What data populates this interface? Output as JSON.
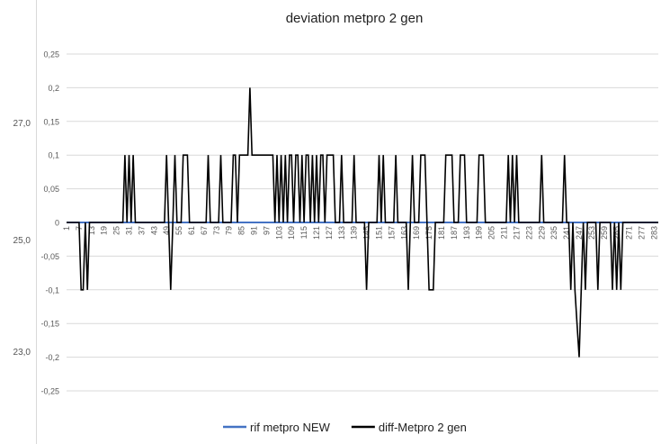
{
  "left_strip": {
    "ticks": [
      "27,0",
      "25,0",
      "23,0"
    ]
  },
  "chart_data": {
    "type": "line",
    "title": "deviation metpro 2 gen",
    "xlabel": "",
    "ylabel": "",
    "ylim": [
      -0.25,
      0.25
    ],
    "yticks": [
      "0,25",
      "0,2",
      "0,15",
      "0,1",
      "0,05",
      "0",
      "-0,05",
      "-0,1",
      "-0,15",
      "-0,2",
      "-0,25"
    ],
    "x_range": [
      1,
      285
    ],
    "xtick_labels": [
      "1",
      "7",
      "13",
      "19",
      "25",
      "31",
      "37",
      "43",
      "49",
      "55",
      "61",
      "67",
      "73",
      "79",
      "85",
      "91",
      "97",
      "103",
      "109",
      "115",
      "121",
      "127",
      "133",
      "139",
      "145",
      "151",
      "157",
      "163",
      "169",
      "175",
      "181",
      "187",
      "193",
      "199",
      "205",
      "211",
      "217",
      "223",
      "229",
      "235",
      "241",
      "247",
      "253",
      "259",
      "265",
      "271",
      "277",
      "283"
    ],
    "grid": true,
    "legend_position": "bottom",
    "series": [
      {
        "name": "rif metpro NEW",
        "color": "#4472c4",
        "points": [
          [
            1,
            0
          ],
          [
            285,
            0
          ]
        ]
      },
      {
        "name": "diff-Metpro 2 gen",
        "color": "#000000",
        "points": [
          [
            1,
            0
          ],
          [
            7,
            0
          ],
          [
            8,
            -0.1
          ],
          [
            9,
            -0.1
          ],
          [
            10,
            0
          ],
          [
            11,
            -0.1
          ],
          [
            12,
            0
          ],
          [
            28,
            0
          ],
          [
            29,
            0.1
          ],
          [
            30,
            0
          ],
          [
            31,
            0.1
          ],
          [
            32,
            0
          ],
          [
            33,
            0.1
          ],
          [
            34,
            0
          ],
          [
            48,
            0
          ],
          [
            49,
            0.1
          ],
          [
            50,
            0
          ],
          [
            51,
            -0.1
          ],
          [
            52,
            0
          ],
          [
            53,
            0.1
          ],
          [
            54,
            0
          ],
          [
            56,
            0
          ],
          [
            57,
            0.1
          ],
          [
            59,
            0.1
          ],
          [
            60,
            0
          ],
          [
            68,
            0
          ],
          [
            69,
            0.1
          ],
          [
            70,
            0
          ],
          [
            74,
            0
          ],
          [
            75,
            0.1
          ],
          [
            76,
            0
          ],
          [
            80,
            0
          ],
          [
            81,
            0.1
          ],
          [
            82,
            0.1
          ],
          [
            83,
            0
          ],
          [
            84,
            0.1
          ],
          [
            85,
            0.1
          ],
          [
            86,
            0.1
          ],
          [
            88,
            0.1
          ],
          [
            89,
            0.2
          ],
          [
            90,
            0.1
          ],
          [
            100,
            0.1
          ],
          [
            101,
            0
          ],
          [
            102,
            0.1
          ],
          [
            103,
            0
          ],
          [
            104,
            0.1
          ],
          [
            105,
            0
          ],
          [
            106,
            0.1
          ],
          [
            107,
            0
          ],
          [
            108,
            0.1
          ],
          [
            109,
            0.1
          ],
          [
            110,
            0
          ],
          [
            111,
            0.1
          ],
          [
            112,
            0.1
          ],
          [
            113,
            0
          ],
          [
            114,
            0.1
          ],
          [
            115,
            0
          ],
          [
            116,
            0.1
          ],
          [
            117,
            0.1
          ],
          [
            118,
            0
          ],
          [
            119,
            0.1
          ],
          [
            120,
            0
          ],
          [
            121,
            0.1
          ],
          [
            122,
            0
          ],
          [
            123,
            0.1
          ],
          [
            124,
            0.1
          ],
          [
            125,
            0
          ],
          [
            126,
            0.1
          ],
          [
            129,
            0.1
          ],
          [
            130,
            0
          ],
          [
            132,
            0
          ],
          [
            133,
            0.1
          ],
          [
            134,
            0
          ],
          [
            138,
            0
          ],
          [
            139,
            0.1
          ],
          [
            140,
            0
          ],
          [
            144,
            0
          ],
          [
            145,
            -0.1
          ],
          [
            146,
            0
          ],
          [
            150,
            0
          ],
          [
            151,
            0.1
          ],
          [
            152,
            0
          ],
          [
            153,
            0.1
          ],
          [
            154,
            0
          ],
          [
            158,
            0
          ],
          [
            159,
            0.1
          ],
          [
            160,
            0
          ],
          [
            164,
            0
          ],
          [
            165,
            -0.1
          ],
          [
            166,
            0
          ],
          [
            167,
            0.1
          ],
          [
            168,
            0
          ],
          [
            170,
            0
          ],
          [
            171,
            0.1
          ],
          [
            173,
            0.1
          ],
          [
            174,
            0
          ],
          [
            175,
            -0.1
          ],
          [
            177,
            -0.1
          ],
          [
            178,
            0
          ],
          [
            182,
            0
          ],
          [
            183,
            0.1
          ],
          [
            186,
            0.1
          ],
          [
            187,
            0
          ],
          [
            189,
            0
          ],
          [
            190,
            0.1
          ],
          [
            192,
            0.1
          ],
          [
            193,
            0
          ],
          [
            198,
            0
          ],
          [
            199,
            0.1
          ],
          [
            201,
            0.1
          ],
          [
            202,
            0
          ],
          [
            212,
            0
          ],
          [
            213,
            0.1
          ],
          [
            214,
            0
          ],
          [
            215,
            0.1
          ],
          [
            216,
            0
          ],
          [
            217,
            0.1
          ],
          [
            218,
            0
          ],
          [
            228,
            0
          ],
          [
            229,
            0.1
          ],
          [
            230,
            0
          ],
          [
            239,
            0
          ],
          [
            240,
            0.1
          ],
          [
            241,
            0
          ],
          [
            242,
            0
          ],
          [
            243,
            -0.1
          ],
          [
            244,
            0
          ],
          [
            245,
            -0.1
          ],
          [
            246,
            -0.15
          ],
          [
            247,
            -0.2
          ],
          [
            248,
            -0.1
          ],
          [
            249,
            0
          ],
          [
            250,
            -0.1
          ],
          [
            251,
            0
          ],
          [
            255,
            0
          ],
          [
            256,
            -0.1
          ],
          [
            257,
            0
          ],
          [
            262,
            0
          ],
          [
            263,
            -0.1
          ],
          [
            264,
            0
          ],
          [
            265,
            -0.1
          ],
          [
            266,
            0
          ],
          [
            267,
            -0.1
          ],
          [
            268,
            0
          ],
          [
            285,
            0
          ]
        ]
      }
    ]
  }
}
